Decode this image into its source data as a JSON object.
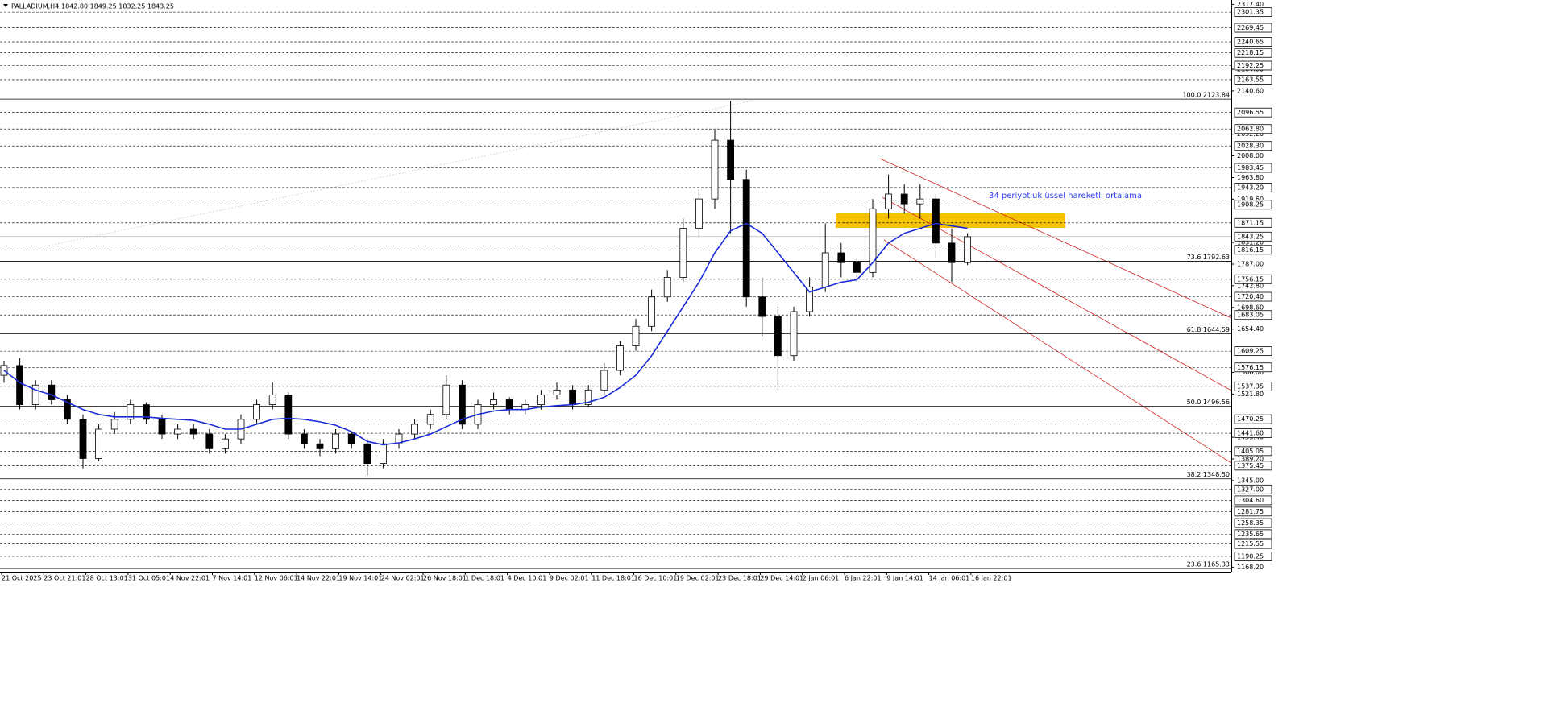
{
  "chart_data": {
    "type": "candlestick",
    "title": "PALLADIUM,H4",
    "ohlc_label": "1842.80 1849.25 1832.25 1843.25",
    "annotation": "34 periyotluk üssel hareketli ortalama",
    "ylim": [
      1159,
      2318
    ],
    "candles": {
      "color": "#000000",
      "open": [
        1560,
        1580,
        1500,
        1540,
        1510,
        1470,
        1390,
        1450,
        1470,
        1500,
        1470,
        1440,
        1450,
        1440,
        1410,
        1430,
        1470,
        1500,
        1520,
        1440,
        1420,
        1410,
        1440,
        1420,
        1380,
        1420,
        1440,
        1460,
        1480,
        1540,
        1460,
        1500,
        1510,
        1490,
        1500,
        1520,
        1530,
        1500,
        1530,
        1570,
        1620,
        1660,
        1720,
        1760,
        1860,
        1920,
        2040,
        1960,
        1720,
        1680,
        1600,
        1690,
        1740,
        1810,
        1790,
        1770,
        1900,
        1930,
        1910,
        1920,
        1830,
        1790
      ],
      "high": [
        1590,
        1595,
        1550,
        1550,
        1520,
        1480,
        1460,
        1485,
        1510,
        1505,
        1480,
        1460,
        1460,
        1450,
        1440,
        1480,
        1510,
        1545,
        1525,
        1450,
        1430,
        1450,
        1445,
        1430,
        1430,
        1450,
        1470,
        1490,
        1560,
        1550,
        1510,
        1525,
        1515,
        1510,
        1530,
        1545,
        1540,
        1540,
        1585,
        1630,
        1675,
        1735,
        1775,
        1880,
        1940,
        2060,
        2120,
        1980,
        1760,
        1700,
        1700,
        1760,
        1870,
        1830,
        1800,
        1920,
        1970,
        1950,
        1950,
        1930,
        1860,
        1850
      ],
      "low": [
        1545,
        1490,
        1490,
        1500,
        1460,
        1370,
        1385,
        1440,
        1460,
        1460,
        1430,
        1430,
        1430,
        1400,
        1400,
        1420,
        1460,
        1490,
        1430,
        1410,
        1395,
        1400,
        1410,
        1355,
        1370,
        1410,
        1430,
        1450,
        1470,
        1450,
        1450,
        1490,
        1480,
        1480,
        1490,
        1510,
        1490,
        1495,
        1520,
        1560,
        1610,
        1650,
        1710,
        1750,
        1840,
        1900,
        1850,
        1700,
        1640,
        1530,
        1590,
        1680,
        1730,
        1760,
        1750,
        1760,
        1880,
        1890,
        1880,
        1800,
        1750,
        1785
      ],
      "close": [
        1580,
        1500,
        1540,
        1510,
        1470,
        1390,
        1450,
        1470,
        1500,
        1470,
        1440,
        1450,
        1440,
        1410,
        1430,
        1470,
        1500,
        1520,
        1440,
        1420,
        1410,
        1440,
        1420,
        1380,
        1420,
        1440,
        1460,
        1480,
        1540,
        1460,
        1500,
        1510,
        1490,
        1500,
        1520,
        1530,
        1500,
        1530,
        1570,
        1620,
        1660,
        1720,
        1760,
        1860,
        1920,
        2040,
        1960,
        1720,
        1680,
        1600,
        1690,
        1740,
        1810,
        1790,
        1770,
        1900,
        1930,
        1910,
        1920,
        1830,
        1790,
        1843
      ]
    },
    "ema": {
      "color": "#1a2bd8",
      "values": [
        1570,
        1545,
        1530,
        1520,
        1505,
        1490,
        1480,
        1475,
        1475,
        1475,
        1472,
        1470,
        1468,
        1460,
        1450,
        1450,
        1460,
        1470,
        1472,
        1470,
        1465,
        1458,
        1445,
        1425,
        1418,
        1422,
        1430,
        1440,
        1455,
        1470,
        1480,
        1487,
        1490,
        1490,
        1495,
        1498,
        1500,
        1505,
        1515,
        1535,
        1560,
        1600,
        1650,
        1700,
        1750,
        1810,
        1855,
        1870,
        1850,
        1810,
        1770,
        1730,
        1740,
        1750,
        1755,
        1790,
        1830,
        1850,
        1860,
        1870,
        1865,
        1860
      ]
    },
    "current_price": {
      "value": 1843.25,
      "label": "1843.25"
    },
    "levels": [
      {
        "value": 2301.35,
        "label": "2301.35"
      },
      {
        "value": 2269.45,
        "label": "2269.45"
      },
      {
        "value": 2240.65,
        "label": "2240.65"
      },
      {
        "value": 2218.15,
        "label": "2218.15"
      },
      {
        "value": 2192.25,
        "label": "2192.25"
      },
      {
        "value": 2163.55,
        "label": "2163.55"
      },
      {
        "value": 2096.55,
        "label": "2096.55"
      },
      {
        "value": 2062.8,
        "label": "2062.80"
      },
      {
        "value": 2028.3,
        "label": "2028.30"
      },
      {
        "value": 1983.45,
        "label": "1983.45"
      },
      {
        "value": 1943.2,
        "label": "1943.20"
      },
      {
        "value": 1908.25,
        "label": "1908.25"
      },
      {
        "value": 1871.15,
        "label": "1871.15"
      },
      {
        "value": 1816.15,
        "label": "1816.15"
      },
      {
        "value": 1756.15,
        "label": "1756.15"
      },
      {
        "value": 1720.4,
        "label": "1720.40"
      },
      {
        "value": 1683.05,
        "label": "1683.05"
      },
      {
        "value": 1609.25,
        "label": "1609.25"
      },
      {
        "value": 1576.15,
        "label": "1576.15"
      },
      {
        "value": 1537.35,
        "label": "1537.35"
      },
      {
        "value": 1470.25,
        "label": "1470.25"
      },
      {
        "value": 1441.6,
        "label": "1441.60"
      },
      {
        "value": 1405.05,
        "label": "1405.05"
      },
      {
        "value": 1375.45,
        "label": "1375.45"
      },
      {
        "value": 1327,
        "label": "1327.00"
      },
      {
        "value": 1304.6,
        "label": "1304.60"
      },
      {
        "value": 1281.75,
        "label": "1281.75"
      },
      {
        "value": 1258.35,
        "label": "1258.35"
      },
      {
        "value": 1235.65,
        "label": "1235.65"
      },
      {
        "value": 1215.55,
        "label": "1215.55"
      },
      {
        "value": 1190.25,
        "label": "1190.25"
      }
    ],
    "yticks": [
      {
        "value": 2317.4,
        "label": "2317.40"
      },
      {
        "value": 2184.8,
        "label": "2184.80"
      },
      {
        "value": 2140.6,
        "label": "2140.60"
      },
      {
        "value": 2052.2,
        "label": "2052.20"
      },
      {
        "value": 2008,
        "label": "2008.00"
      },
      {
        "value": 1963.8,
        "label": "1963.80"
      },
      {
        "value": 1919.6,
        "label": "1919.60"
      },
      {
        "value": 1831.2,
        "label": "1831.20"
      },
      {
        "value": 1787,
        "label": "1787.00"
      },
      {
        "value": 1742.8,
        "label": "1742.80"
      },
      {
        "value": 1698.6,
        "label": "1698.60"
      },
      {
        "value": 1654.4,
        "label": "1654.40"
      },
      {
        "value": 1566,
        "label": "1566.00"
      },
      {
        "value": 1521.8,
        "label": "1521.80"
      },
      {
        "value": 1433.4,
        "label": "1433.40"
      },
      {
        "value": 1389.2,
        "label": "1389.20"
      },
      {
        "value": 1345,
        "label": "1345.00"
      },
      {
        "value": 1168.2,
        "label": "1168.20"
      }
    ],
    "fib_levels": [
      {
        "value": 2123.84,
        "label": "100.0 2123.84"
      },
      {
        "value": 1792.63,
        "label": "73.6 1792.63"
      },
      {
        "value": 1644.59,
        "label": "61.8 1644.59"
      },
      {
        "value": 1496.56,
        "label": "50.0 1496.56"
      },
      {
        "value": 1348.5,
        "label": "38.2 1348.50"
      },
      {
        "value": 1165.33,
        "label": "23.6 1165.33"
      }
    ],
    "dates": [
      "21 Oct 2025",
      "23 Oct 21:01",
      "28 Oct 13:01",
      "31 Oct 05:01",
      "4 Nov 22:01",
      "7 Nov 14:01",
      "12 Nov 06:01",
      "14 Nov 22:01",
      "19 Nov 14:01",
      "24 Nov 02:01",
      "26 Nov 18:01",
      "1 Dec 18:01",
      "4 Dec 10:01",
      "9 Dec 02:01",
      "11 Dec 18:01",
      "16 Dec 10:01",
      "19 Dec 02:01",
      "23 Dec 18:01",
      "29 Dec 14:01",
      "2 Jan 06:01",
      "6 Jan 22:01",
      "9 Jan 14:01",
      "14 Jan 06:01",
      "16 Jan 22:01"
    ]
  }
}
